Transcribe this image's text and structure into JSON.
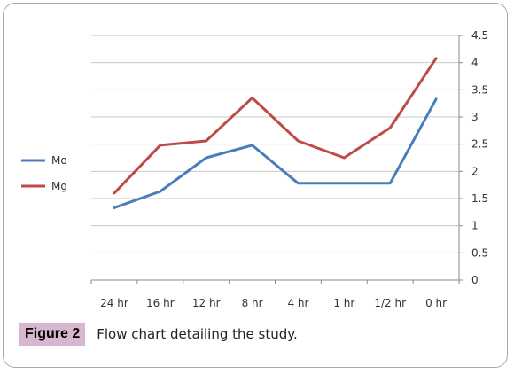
{
  "chart_data": {
    "type": "line",
    "categories": [
      "24 hr",
      "16 hr",
      "12 hr",
      "8 hr",
      "4 hr",
      "1 hr",
      "1/2 hr",
      "0 hr"
    ],
    "series": [
      {
        "name": "Mo",
        "color": "#4a7ebb",
        "values": [
          1.33,
          1.63,
          2.25,
          2.48,
          1.78,
          1.78,
          1.78,
          3.33
        ]
      },
      {
        "name": "Mg",
        "color": "#be4b48",
        "values": [
          1.6,
          2.48,
          2.56,
          3.35,
          2.56,
          2.25,
          2.8,
          4.08
        ]
      }
    ],
    "ylim": [
      0,
      4.5
    ],
    "yticks": [
      "0",
      "0.5",
      "1",
      "1.5",
      "2",
      "2.5",
      "3",
      "3.5",
      "4",
      "4.5"
    ],
    "y_axis_side": "right",
    "grid": true,
    "legend_placement": "left"
  },
  "caption": {
    "label": "Figure 2",
    "text": "Flow chart detailing the study."
  }
}
